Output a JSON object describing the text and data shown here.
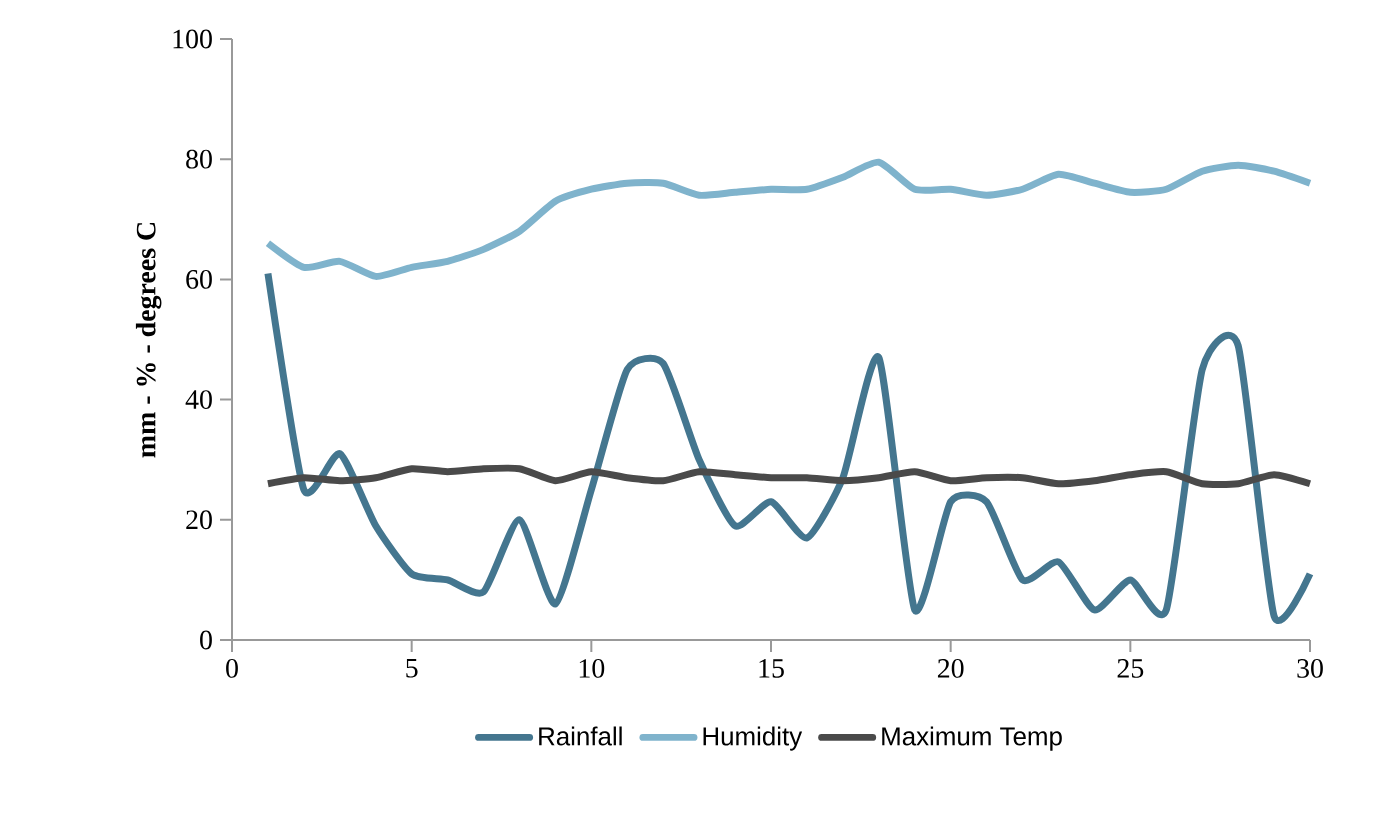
{
  "chart_data": {
    "type": "line",
    "ylabel": "mm - % - degrees C",
    "x": [
      1,
      2,
      3,
      4,
      5,
      6,
      7,
      8,
      9,
      10,
      11,
      12,
      13,
      14,
      15,
      16,
      17,
      18,
      19,
      20,
      21,
      22,
      23,
      24,
      25,
      26,
      27,
      28,
      29,
      30
    ],
    "series": [
      {
        "name": "Rainfall",
        "color": "#44768f",
        "values": [
          61,
          25,
          31,
          19,
          11,
          10,
          8,
          20,
          6,
          25,
          45,
          46,
          30,
          19,
          23,
          17,
          27,
          47,
          5,
          23,
          23,
          10,
          13,
          5,
          10,
          5,
          45,
          49,
          4,
          11
        ]
      },
      {
        "name": "Humidity",
        "color": "#7fb3cc",
        "values": [
          66,
          62,
          63,
          60.5,
          62,
          63,
          65,
          68,
          73,
          75,
          76,
          76,
          74,
          74.5,
          75,
          75,
          77,
          79.5,
          75,
          75,
          74,
          75,
          77.5,
          76,
          74.5,
          75,
          78,
          79,
          78,
          76
        ]
      },
      {
        "name": "Maximum Temp",
        "color": "#4a4a4a",
        "values": [
          26,
          27,
          26.5,
          27,
          28.5,
          28,
          28.5,
          28.5,
          26.5,
          28,
          27,
          26.5,
          28,
          27.5,
          27,
          27,
          26.5,
          27,
          28,
          26.5,
          27,
          27,
          26,
          26.5,
          27.5,
          28,
          26,
          26,
          27.5,
          26
        ]
      }
    ],
    "xlim": [
      0,
      30
    ],
    "xticks": [
      0,
      5,
      10,
      15,
      20,
      25,
      30
    ],
    "ylim": [
      0,
      100
    ],
    "yticks": [
      0,
      20,
      40,
      60,
      80,
      100
    ],
    "grid": false,
    "legend": "bottom",
    "marker": "none",
    "line_style": "solid"
  }
}
